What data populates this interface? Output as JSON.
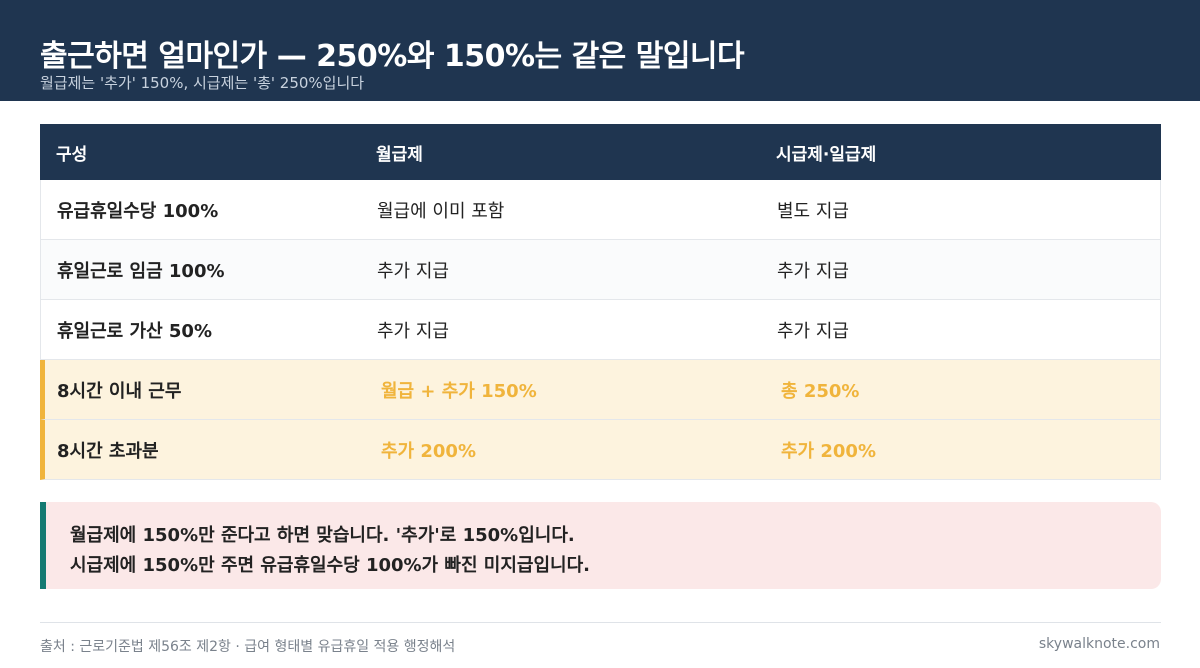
{
  "header": {
    "title": "출근하면 얼마인가 — 250%와 150%는 같은 말입니다",
    "subtitle": "월급제는 '추가' 150%, 시급제는 '총' 250%입니다"
  },
  "table": {
    "headers": [
      "구성",
      "월급제",
      "시급제·일급제"
    ],
    "rows": [
      {
        "label": "유급휴일수당 100%",
        "monthly": "월급에 이미 포함",
        "hourly": "별도 지급"
      },
      {
        "label": "휴일근로 임금 100%",
        "monthly": "추가 지급",
        "hourly": "추가 지급"
      },
      {
        "label": "휴일근로 가산 50%",
        "monthly": "추가 지급",
        "hourly": "추가 지급"
      },
      {
        "label": "8시간 이내 근무",
        "monthly": "월급 + 추가 150%",
        "hourly": "총 250%"
      },
      {
        "label": "8시간 초과분",
        "monthly": "추가 200%",
        "hourly": "추가 200%"
      }
    ]
  },
  "note": {
    "line1": "월급제에 150%만 준다고 하면 맞습니다. '추가'로 150%입니다.",
    "line2": "시급제에 150%만 주면 유급휴일수당 100%가 빠진 미지급입니다."
  },
  "footer": {
    "source": "출처 : 근로기준법 제56조 제2항 · 급여 형태별 유급휴일 적용 행정해석",
    "site": "skywalknote.com"
  },
  "colors": {
    "navy": "#1f3550",
    "highlight_accent": "#f0b43c",
    "highlight_bg": "#fdf3de",
    "note_bg": "#fbe8e8",
    "note_accent": "#147a72"
  }
}
